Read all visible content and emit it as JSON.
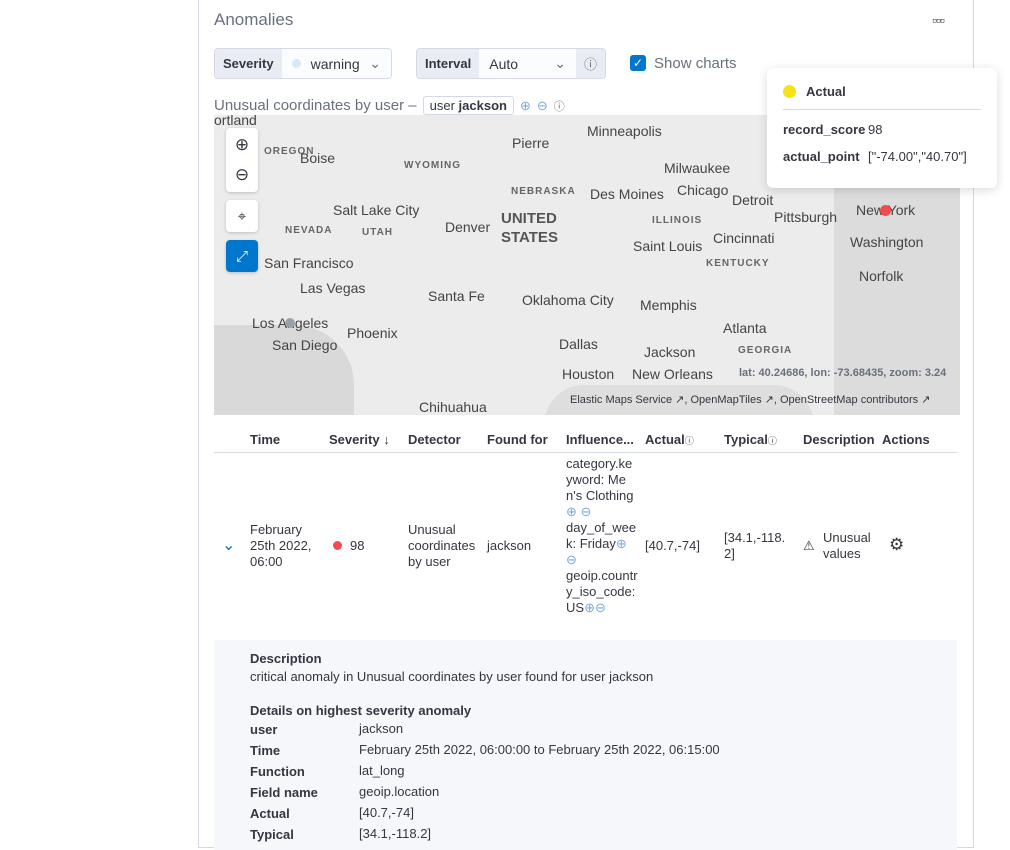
{
  "title": "Anomalies",
  "controls": {
    "severity_label": "Severity",
    "severity_value": "warning",
    "severity_color": "#d6e9f7",
    "interval_label": "Interval",
    "interval_value": "Auto",
    "show_charts": "Show charts",
    "show_charts_checked": true
  },
  "chart": {
    "title": "Unusual coordinates by user –",
    "entity_field": "user",
    "entity_value": "jackson"
  },
  "map": {
    "labels": [
      "ortland",
      "Boise",
      "OREGON",
      "WYOMING",
      "Pierre",
      "Minneapolis",
      "Milwaukee",
      "NEBRASKA",
      "Des Moines",
      "Chicago",
      "Detroit",
      "Salt Lake City",
      "UNITED",
      "STATES",
      "NEVADA",
      "UTAH",
      "Denver",
      "ILLINOIS",
      "Pittsburgh",
      "New York",
      "Cincinnati",
      "Washington",
      "San Francisco",
      "Saint Louis",
      "KENTUCKY",
      "Norfolk",
      "Las Vegas",
      "Santa Fe",
      "Oklahoma City",
      "Memphis",
      "Los Angeles",
      "Phoenix",
      "Atlanta",
      "San Diego",
      "Dallas",
      "Jackson",
      "GEORGIA",
      "Houston",
      "New Orleans",
      "Chihuahua"
    ],
    "coords": "lat: 40.24686, lon: -73.68435, zoom: 3.24",
    "attribution": [
      "Elastic Maps Service",
      "OpenMapTiles",
      "OpenStreetMap contributors"
    ],
    "actual_color": "#f04e4e",
    "typical_color": "#9aa1ac"
  },
  "tooltip": {
    "series": "Actual",
    "series_color": "#f5e21a",
    "rows": [
      {
        "k": "record_score",
        "v": "98"
      },
      {
        "k": "actual_point",
        "v": "[\"-74.00\",\"40.70\"]"
      }
    ]
  },
  "table": {
    "headers": [
      "Time",
      "Severity",
      "Detector",
      "Found for",
      "Influence...",
      "Actual",
      "Typical",
      "Description",
      "Actions"
    ],
    "row": {
      "time": "February 25th 2022, 06:00",
      "severity": "98",
      "severity_color": "#f04e4e",
      "detector": "Unusual coordinates by user",
      "found_for": "jackson",
      "influencers": [
        "category.keyword: Men's Clothing",
        "day_of_week: Friday",
        "geoip.country_iso_code: US"
      ],
      "actual": "[40.7,-74]",
      "typical": "[34.1,-118.2]",
      "description": "Unusual values"
    }
  },
  "details": {
    "desc_title": "Description",
    "desc": "critical anomaly in Unusual coordinates by user found for user jackson",
    "sev_title": "Details on highest severity anomaly",
    "rows": [
      {
        "k": "user",
        "v": "jackson"
      },
      {
        "k": "Time",
        "v": "February 25th 2022, 06:00:00 to February 25th 2022, 06:15:00"
      },
      {
        "k": "Function",
        "v": "lat_long"
      },
      {
        "k": "Field name",
        "v": "geoip.location"
      },
      {
        "k": "Actual",
        "v": "[40.7,-74]"
      },
      {
        "k": "Typical",
        "v": "[34.1,-118.2]"
      }
    ]
  }
}
